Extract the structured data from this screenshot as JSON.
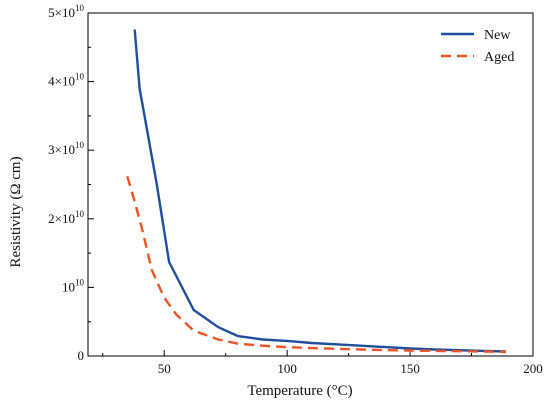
{
  "chart_data": {
    "type": "line",
    "xlabel": "Temperature (°C)",
    "ylabel": "Resistivity (Ω cm)",
    "xlim": [
      19,
      200
    ],
    "ylim": [
      0,
      50000000000
    ],
    "x_ticks": [
      50,
      100,
      150,
      200
    ],
    "y_ticks": [
      {
        "value": 0,
        "label": "0"
      },
      {
        "value": 10000000000,
        "label": "10",
        "sup": "10"
      },
      {
        "value": 20000000000,
        "label": "2×10",
        "sup": "10"
      },
      {
        "value": 30000000000,
        "label": "3×10",
        "sup": "10"
      },
      {
        "value": 40000000000,
        "label": "4×10",
        "sup": "10"
      },
      {
        "value": 50000000000,
        "label": "5×10",
        "sup": "10"
      }
    ],
    "legend": "top-right",
    "grid": false,
    "series": [
      {
        "name": "New",
        "color": "#1f4e9c",
        "style": "solid",
        "x": [
          38,
          40,
          43,
          47,
          52,
          62,
          72,
          80,
          90,
          100,
          110,
          120,
          130,
          140,
          150,
          160,
          170,
          180,
          189
        ],
        "y": [
          47600000000,
          39000000000,
          33000000000,
          25000000000,
          13700000000,
          6700000000,
          4200000000,
          2900000000,
          2400000000,
          2200000000,
          1900000000,
          1700000000,
          1500000000,
          1300000000,
          1100000000,
          950000000,
          850000000,
          750000000,
          650000000
        ]
      },
      {
        "name": "Aged",
        "color": "#f05323",
        "style": "dashed",
        "x": [
          35,
          38,
          41,
          45,
          50,
          55,
          62,
          72,
          80,
          90,
          100,
          110,
          120,
          130,
          140,
          150,
          160,
          170,
          180,
          189
        ],
        "y": [
          26200000000,
          22500000000,
          18500000000,
          12500000000,
          8500000000,
          6000000000,
          3700000000,
          2400000000,
          1800000000,
          1500000000,
          1300000000,
          1150000000,
          1050000000,
          950000000,
          850000000,
          800000000,
          750000000,
          700000000,
          650000000,
          600000000
        ]
      }
    ]
  }
}
